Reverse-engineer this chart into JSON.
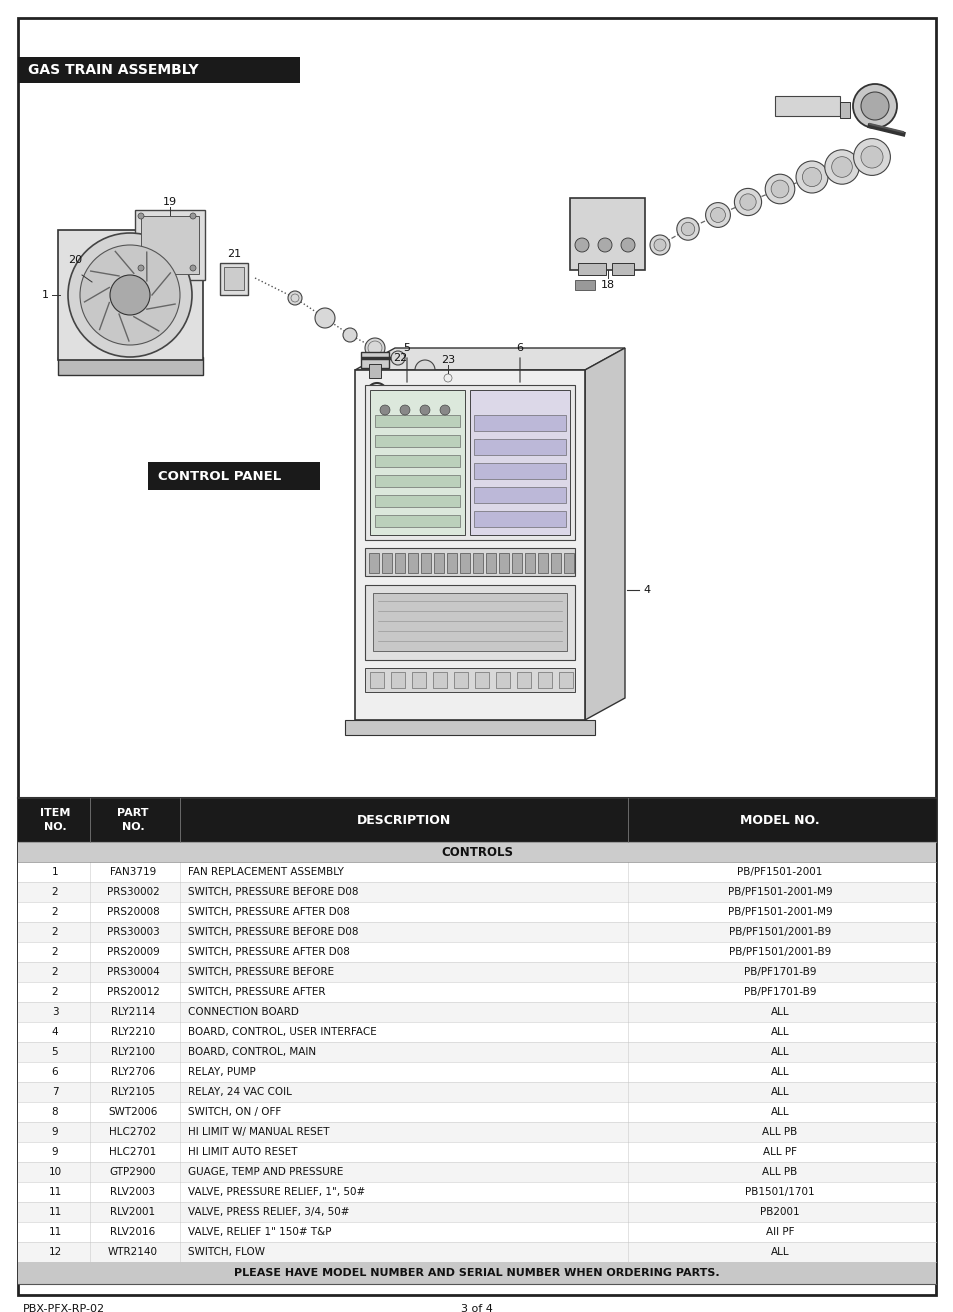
{
  "page_bg": "#ffffff",
  "border_color": "#222222",
  "header_bg": "#1a1a1a",
  "header_text_color": "#ffffff",
  "table_header_bg": "#1a1a1a",
  "section_title": "GAS TRAIN ASSEMBLY",
  "control_panel_label": "CONTROL PANEL",
  "controls_label": "CONTROLS",
  "table_rows": [
    [
      "1",
      "FAN3719",
      "FAN REPLACEMENT ASSEMBLY",
      "PB/PF1501-2001"
    ],
    [
      "2",
      "PRS30002",
      "SWITCH, PRESSURE BEFORE D08",
      "PB/PF1501-2001-M9"
    ],
    [
      "2",
      "PRS20008",
      "SWITCH, PRESSURE AFTER D08",
      "PB/PF1501-2001-M9"
    ],
    [
      "2",
      "PRS30003",
      "SWITCH, PRESSURE BEFORE D08",
      "PB/PF1501/2001-B9"
    ],
    [
      "2",
      "PRS20009",
      "SWITCH, PRESSURE AFTER D08",
      "PB/PF1501/2001-B9"
    ],
    [
      "2",
      "PRS30004",
      "SWITCH, PRESSURE BEFORE",
      "PB/PF1701-B9"
    ],
    [
      "2",
      "PRS20012",
      "SWITCH, PRESSURE AFTER",
      "PB/PF1701-B9"
    ],
    [
      "3",
      "RLY2114",
      "CONNECTION BOARD",
      "ALL"
    ],
    [
      "4",
      "RLY2210",
      "BOARD, CONTROL, USER INTERFACE",
      "ALL"
    ],
    [
      "5",
      "RLY2100",
      "BOARD, CONTROL, MAIN",
      "ALL"
    ],
    [
      "6",
      "RLY2706",
      "RELAY, PUMP",
      "ALL"
    ],
    [
      "7",
      "RLY2105",
      "RELAY, 24 VAC COIL",
      "ALL"
    ],
    [
      "8",
      "SWT2006",
      "SWITCH, ON / OFF",
      "ALL"
    ],
    [
      "9",
      "HLC2702",
      "HI LIMIT W/ MANUAL RESET",
      "ALL PB"
    ],
    [
      "9",
      "HLC2701",
      "HI LIMIT AUTO RESET",
      "ALL PF"
    ],
    [
      "10",
      "GTP2900",
      "GUAGE, TEMP AND PRESSURE",
      "ALL PB"
    ],
    [
      "11",
      "RLV2003",
      "VALVE, PRESSURE RELIEF, 1\", 50#",
      "PB1501/1701"
    ],
    [
      "11",
      "RLV2001",
      "VALVE, PRESS RELIEF, 3/4, 50#",
      "PB2001"
    ],
    [
      "11",
      "RLV2016",
      "VALVE, RELIEF 1\" 150# T&P",
      "All PF"
    ],
    [
      "12",
      "WTR2140",
      "SWITCH, FLOW",
      "ALL"
    ]
  ],
  "footer_note": "PLEASE HAVE MODEL NUMBER AND SERIAL NUMBER WHEN ORDERING PARTS.",
  "footer_left": "PBX-PFX-RP-02",
  "footer_center": "3 of 4"
}
